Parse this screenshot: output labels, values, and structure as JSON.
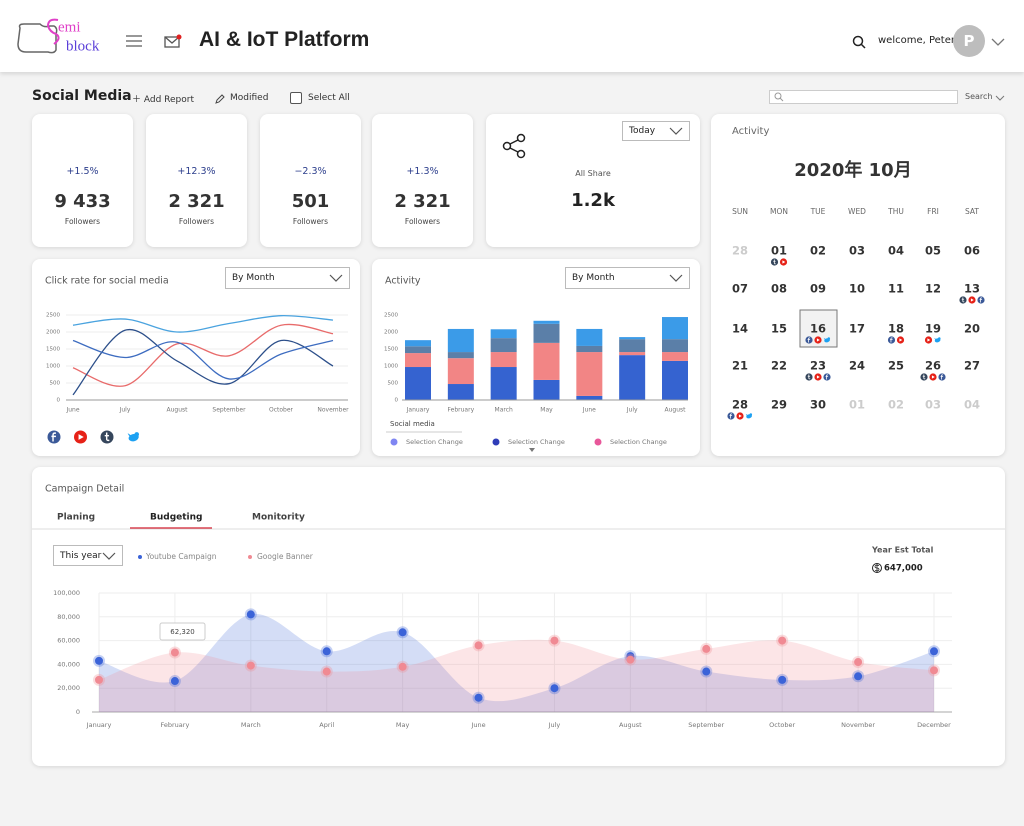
{
  "header": {
    "logo": [
      "emi",
      "block"
    ],
    "title": "AI & IoT Platform",
    "welcome": "welcome, Peter~",
    "avatar": "P"
  },
  "toolbar": {
    "title": "Social Media",
    "add_report": "Add Report",
    "modified": "Modified",
    "select_all": "Select All",
    "search": "Search"
  },
  "stats": [
    {
      "change": "+1.5%",
      "count": "9 433",
      "label": "Followers"
    },
    {
      "change": "+12.3%",
      "count": "2 321",
      "label": "Followers"
    },
    {
      "change": "−2.3%",
      "count": "501",
      "label": "Followers"
    },
    {
      "change": "+1.3%",
      "count": "2 321",
      "label": "Followers"
    }
  ],
  "share": {
    "period": "Today",
    "label": "All Share",
    "value": "1.2k"
  },
  "calendar": {
    "title": "Activity",
    "month": "2020年 10月",
    "weekdays": [
      "SUN",
      "MON",
      "TUE",
      "WED",
      "THU",
      "FRI",
      "SAT"
    ],
    "days": [
      "28",
      "01",
      "02",
      "03",
      "04",
      "05",
      "06",
      "07",
      "08",
      "09",
      "10",
      "11",
      "12",
      "13",
      "14",
      "15",
      "16",
      "17",
      "18",
      "19",
      "20",
      "21",
      "22",
      "23",
      "24",
      "25",
      "26",
      "27",
      "28",
      "29",
      "30",
      "01",
      "02",
      "03",
      "04"
    ]
  },
  "chart_data": [
    {
      "type": "line",
      "title": "Click rate for social media",
      "dropdown": "By Month",
      "categories": [
        "June",
        "July",
        "August",
        "September",
        "October",
        "November"
      ],
      "ylim": [
        0,
        2500
      ],
      "yticks": [
        0,
        500,
        1000,
        1500,
        2000,
        2500
      ],
      "grid": true,
      "series": [
        {
          "color": "#4aa3df",
          "values": [
            2200,
            2380,
            2000,
            2250,
            2480,
            2350
          ]
        },
        {
          "color": "#e86b6b",
          "values": [
            950,
            420,
            1650,
            1300,
            2200,
            1950
          ]
        },
        {
          "color": "#2c4f8a",
          "values": [
            150,
            2050,
            1150,
            480,
            1750,
            1000
          ]
        },
        {
          "color": "#3d6cc0",
          "values": [
            1750,
            1250,
            1700,
            620,
            1350,
            1750
          ]
        }
      ]
    },
    {
      "type": "bar",
      "stacked": true,
      "title": "Activity",
      "dropdown": "By Month",
      "categories": [
        "January",
        "February",
        "March",
        "May",
        "June",
        "July",
        "August"
      ],
      "ylim": [
        0,
        2500
      ],
      "yticks": [
        0,
        500,
        1000,
        1500,
        2000,
        2500
      ],
      "grid": false,
      "series": [
        {
          "color": "#3563d0",
          "values": [
            970,
            470,
            970,
            590,
            120,
            1320,
            1150
          ]
        },
        {
          "color": "#f28585",
          "values": [
            410,
            760,
            440,
            1090,
            1290,
            90,
            260
          ]
        },
        {
          "color": "#5b7fa8",
          "values": [
            200,
            180,
            410,
            560,
            180,
            380,
            380
          ]
        },
        {
          "color": "#3b9be8",
          "values": [
            180,
            680,
            260,
            90,
            500,
            60,
            650
          ]
        }
      ],
      "legend_title": "Social media",
      "legend": [
        {
          "name": "Selection Change",
          "color": "#7f86f2"
        },
        {
          "name": "Selection Change",
          "color": "#2f3db8"
        },
        {
          "name": "Selection Change",
          "color": "#e8579a"
        }
      ]
    },
    {
      "type": "area",
      "title": "Campaign Detail",
      "tabs": [
        "Planing",
        "Budgeting",
        "Monitority"
      ],
      "active_tab": 1,
      "period": "This year",
      "total_label": "Year Est Total",
      "total": "647,000",
      "annotation": "62,320",
      "categories": [
        "January",
        "February",
        "March",
        "April",
        "May",
        "June",
        "July",
        "August",
        "September",
        "October",
        "November",
        "December"
      ],
      "ylim": [
        0,
        100000
      ],
      "yticks": [
        0,
        {
          "value": 20000,
          "label": "20,000"
        },
        {
          "value": 40000,
          "label": "40,000"
        },
        {
          "value": 60000,
          "label": "60,000"
        },
        {
          "value": 80000,
          "label": "80,000"
        },
        {
          "value": 100000,
          "label": "100,000"
        }
      ],
      "grid": true,
      "series": [
        {
          "name": "Youtube Campaign",
          "color": "#3b63d8",
          "values": [
            43000,
            26000,
            82000,
            51000,
            67000,
            12000,
            20000,
            47000,
            34000,
            27000,
            30000,
            51000
          ]
        },
        {
          "name": "Google Banner",
          "color": "#f08a93",
          "values": [
            27000,
            50000,
            39000,
            34000,
            38000,
            56000,
            60000,
            44000,
            53000,
            60000,
            42000,
            35000
          ]
        }
      ]
    }
  ]
}
